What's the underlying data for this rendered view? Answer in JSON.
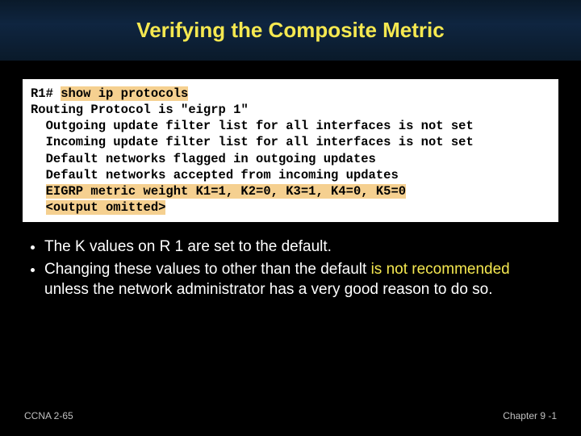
{
  "title": "Verifying the Composite Metric",
  "terminal": {
    "cmd_prompt": "R1# ",
    "cmd": "show ip protocols",
    "line2": "Routing Protocol is \"eigrp 1\"",
    "line3": "Outgoing update filter list for all interfaces is not set",
    "line4": "Incoming update filter list for all interfaces is not set",
    "line5": "Default networks flagged in outgoing updates",
    "line6": "Default networks accepted from incoming updates",
    "line7": "EIGRP metric weight K1=1, K2=0, K3=1, K4=0, K5=0",
    "line8": "<output omitted>",
    "highlight_bg": "#f5d090"
  },
  "bullets": {
    "b1": "The K values on R 1 are set to the default.",
    "b2_a": "Changing these values to other than the default ",
    "b2_warn1": "is not",
    "b2_warn2": "recommended",
    "b2_b": " unless the network administrator has a very good reason to do so."
  },
  "footer": {
    "left": "CCNA 2-65",
    "right": "Chapter  9 -1"
  },
  "colors": {
    "bg": "#000000",
    "title": "#f5e850",
    "text": "#ffffff",
    "warn": "#f5e850",
    "terminal_bg": "#ffffff"
  }
}
